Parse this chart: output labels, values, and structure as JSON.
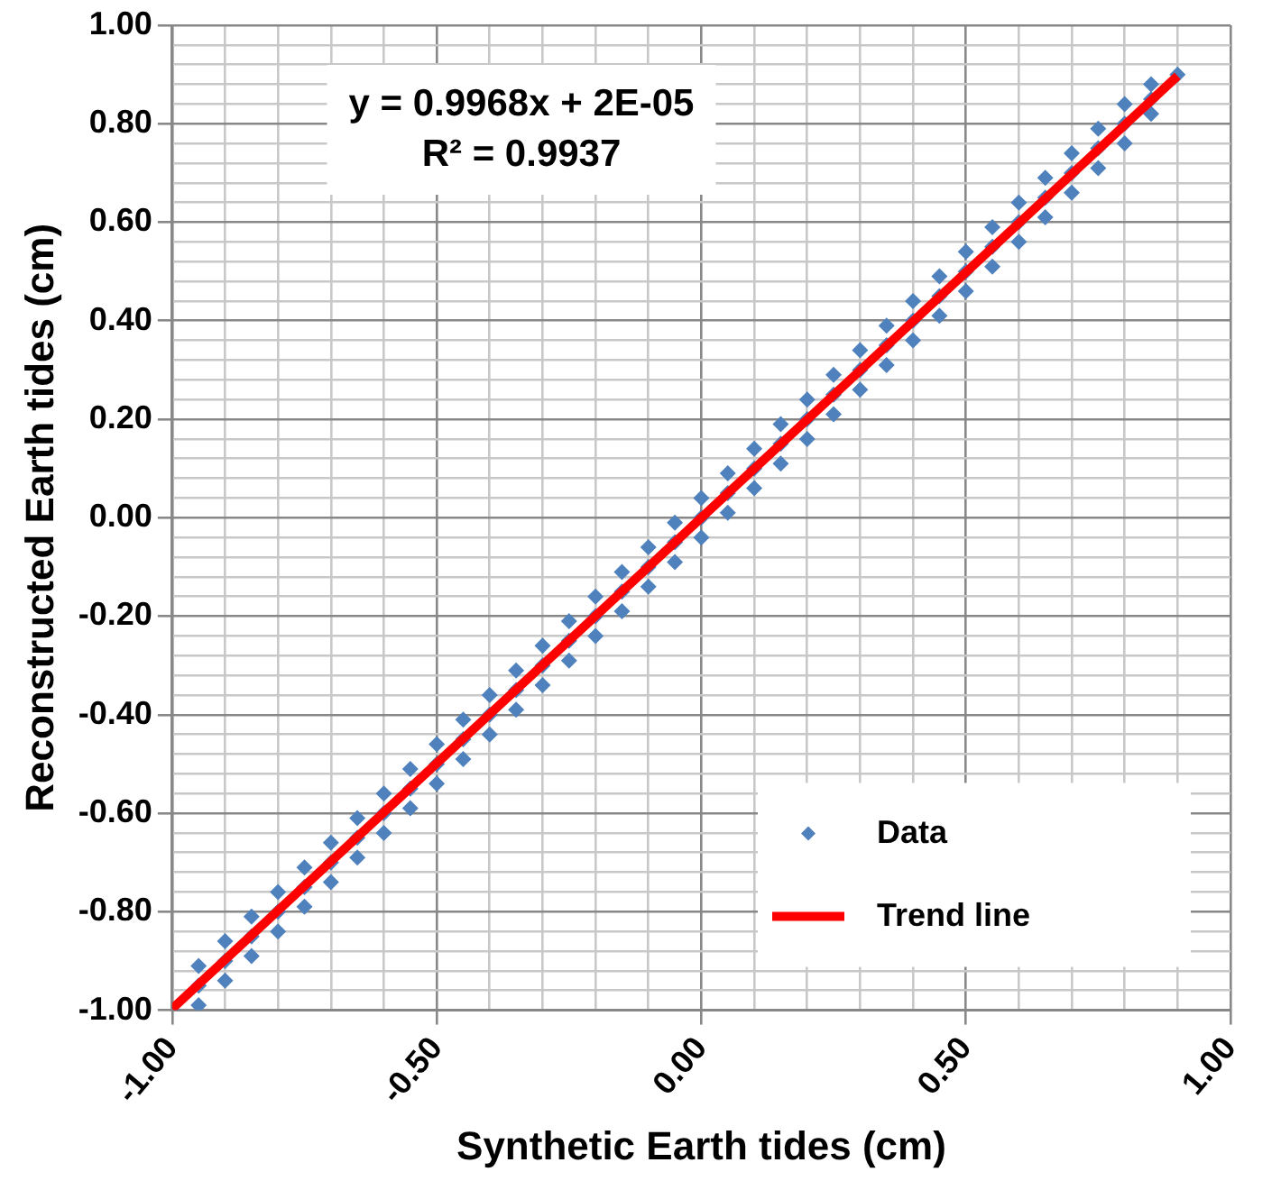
{
  "chart_data": {
    "type": "scatter",
    "xlabel": "Synthetic Earth tides (cm)",
    "ylabel": "Reconstructed Earth tides (cm)",
    "annotations": [
      "y = 0.9968x + 2E-05",
      "R² = 0.9937"
    ],
    "xlim": [
      -1,
      1
    ],
    "ylim": [
      -1,
      1
    ],
    "xticks": [
      {
        "value": -1,
        "label": "-1.00"
      },
      {
        "value": -0.9,
        "label": null
      },
      {
        "value": -0.8,
        "label": null
      },
      {
        "value": -0.7,
        "label": null
      },
      {
        "value": -0.6,
        "label": null
      },
      {
        "value": -0.5,
        "label": "-0.50"
      },
      {
        "value": -0.4,
        "label": null
      },
      {
        "value": -0.3,
        "label": null
      },
      {
        "value": -0.2,
        "label": null
      },
      {
        "value": -0.1,
        "label": null
      },
      {
        "value": 0,
        "label": "0.00"
      },
      {
        "value": 0.1,
        "label": null
      },
      {
        "value": 0.2,
        "label": null
      },
      {
        "value": 0.3,
        "label": null
      },
      {
        "value": 0.4,
        "label": null
      },
      {
        "value": 0.5,
        "label": "0.50"
      },
      {
        "value": 0.6,
        "label": null
      },
      {
        "value": 0.7,
        "label": null
      },
      {
        "value": 0.8,
        "label": null
      },
      {
        "value": 0.9,
        "label": null
      },
      {
        "value": 1,
        "label": "1.00"
      }
    ],
    "yticks": [
      {
        "value": -1,
        "label": "-1.00"
      },
      {
        "value": -0.96,
        "label": null
      },
      {
        "value": -0.92,
        "label": null
      },
      {
        "value": -0.88,
        "label": null
      },
      {
        "value": -0.84,
        "label": null
      },
      {
        "value": -0.8,
        "label": "-0.80"
      },
      {
        "value": -0.76,
        "label": null
      },
      {
        "value": -0.72,
        "label": null
      },
      {
        "value": -0.68,
        "label": null
      },
      {
        "value": -0.64,
        "label": null
      },
      {
        "value": -0.6,
        "label": "-0.60"
      },
      {
        "value": -0.56,
        "label": null
      },
      {
        "value": -0.52,
        "label": null
      },
      {
        "value": -0.48,
        "label": null
      },
      {
        "value": -0.44,
        "label": null
      },
      {
        "value": -0.4,
        "label": "-0.40"
      },
      {
        "value": -0.36,
        "label": null
      },
      {
        "value": -0.32,
        "label": null
      },
      {
        "value": -0.28,
        "label": null
      },
      {
        "value": -0.24,
        "label": null
      },
      {
        "value": -0.2,
        "label": "-0.20"
      },
      {
        "value": -0.16,
        "label": null
      },
      {
        "value": -0.12,
        "label": null
      },
      {
        "value": -0.08,
        "label": null
      },
      {
        "value": -0.04,
        "label": null
      },
      {
        "value": 0,
        "label": "0.00"
      },
      {
        "value": 0.04,
        "label": null
      },
      {
        "value": 0.08,
        "label": null
      },
      {
        "value": 0.12,
        "label": null
      },
      {
        "value": 0.16,
        "label": null
      },
      {
        "value": 0.2,
        "label": "0.20"
      },
      {
        "value": 0.24,
        "label": null
      },
      {
        "value": 0.28,
        "label": null
      },
      {
        "value": 0.32,
        "label": null
      },
      {
        "value": 0.36,
        "label": null
      },
      {
        "value": 0.4,
        "label": "0.40"
      },
      {
        "value": 0.44,
        "label": null
      },
      {
        "value": 0.48,
        "label": null
      },
      {
        "value": 0.52,
        "label": null
      },
      {
        "value": 0.56,
        "label": null
      },
      {
        "value": 0.6,
        "label": "0.60"
      },
      {
        "value": 0.64,
        "label": null
      },
      {
        "value": 0.68,
        "label": null
      },
      {
        "value": 0.72,
        "label": null
      },
      {
        "value": 0.76,
        "label": null
      },
      {
        "value": 0.8,
        "label": "0.80"
      },
      {
        "value": 0.84,
        "label": null
      },
      {
        "value": 0.88,
        "label": null
      },
      {
        "value": 0.92,
        "label": null
      },
      {
        "value": 0.96,
        "label": null
      },
      {
        "value": 1,
        "label": "1.00"
      }
    ],
    "grid": true,
    "legend": "bottom right",
    "marker": "diamond",
    "series": [
      {
        "name": "Data",
        "color": "#4f81bd",
        "x": [
          -1,
          -0.95,
          -0.95,
          -0.95,
          -0.9,
          -0.9,
          -0.9,
          -0.85,
          -0.85,
          -0.85,
          -0.8,
          -0.8,
          -0.8,
          -0.75,
          -0.75,
          -0.75,
          -0.7,
          -0.7,
          -0.7,
          -0.65,
          -0.65,
          -0.65,
          -0.6,
          -0.6,
          -0.6,
          -0.55,
          -0.55,
          -0.55,
          -0.5,
          -0.5,
          -0.5,
          -0.45,
          -0.45,
          -0.45,
          -0.4,
          -0.4,
          -0.4,
          -0.35,
          -0.35,
          -0.35,
          -0.3,
          -0.3,
          -0.3,
          -0.25,
          -0.25,
          -0.25,
          -0.2,
          -0.2,
          -0.2,
          -0.15,
          -0.15,
          -0.15,
          -0.1,
          -0.1,
          -0.1,
          -0.05,
          -0.05,
          -0.05,
          0,
          0,
          0,
          0.05,
          0.05,
          0.05,
          0.1,
          0.1,
          0.1,
          0.15,
          0.15,
          0.15,
          0.2,
          0.2,
          0.2,
          0.25,
          0.25,
          0.25,
          0.3,
          0.3,
          0.3,
          0.35,
          0.35,
          0.35,
          0.4,
          0.4,
          0.4,
          0.45,
          0.45,
          0.45,
          0.5,
          0.5,
          0.5,
          0.55,
          0.55,
          0.55,
          0.6,
          0.6,
          0.6,
          0.65,
          0.65,
          0.65,
          0.7,
          0.7,
          0.7,
          0.75,
          0.75,
          0.75,
          0.8,
          0.8,
          0.8,
          0.85,
          0.85,
          0.85,
          0.9
        ],
        "values": [
          -1,
          -0.91,
          -0.95,
          -0.99,
          -0.86,
          -0.9,
          -0.94,
          -0.81,
          -0.85,
          -0.89,
          -0.76,
          -0.8,
          -0.84,
          -0.71,
          -0.75,
          -0.79,
          -0.66,
          -0.7,
          -0.74,
          -0.61,
          -0.65,
          -0.69,
          -0.56,
          -0.6,
          -0.64,
          -0.51,
          -0.55,
          -0.59,
          -0.46,
          -0.5,
          -0.54,
          -0.41,
          -0.45,
          -0.49,
          -0.36,
          -0.4,
          -0.44,
          -0.31,
          -0.35,
          -0.39,
          -0.26,
          -0.3,
          -0.34,
          -0.21,
          -0.25,
          -0.29,
          -0.16,
          -0.2,
          -0.24,
          -0.11,
          -0.15,
          -0.19,
          -0.06,
          -0.1,
          -0.14,
          -0.01,
          -0.05,
          -0.09,
          0.04,
          0,
          -0.04,
          0.09,
          0.05,
          0.01,
          0.14,
          0.1,
          0.06,
          0.19,
          0.15,
          0.11,
          0.24,
          0.2,
          0.16,
          0.29,
          0.25,
          0.21,
          0.34,
          0.3,
          0.26,
          0.39,
          0.35,
          0.31,
          0.44,
          0.4,
          0.36,
          0.49,
          0.45,
          0.41,
          0.54,
          0.5,
          0.46,
          0.59,
          0.55,
          0.51,
          0.64,
          0.6,
          0.56,
          0.69,
          0.65,
          0.61,
          0.74,
          0.7,
          0.66,
          0.79,
          0.75,
          0.71,
          0.84,
          0.8,
          0.76,
          0.88,
          0.85,
          0.82,
          0.9
        ]
      },
      {
        "name": "Trend line",
        "type": "line",
        "color": "#ff0000",
        "x": [
          -1,
          0.9
        ],
        "values": [
          -0.997,
          0.897
        ],
        "marker": "none"
      }
    ]
  }
}
